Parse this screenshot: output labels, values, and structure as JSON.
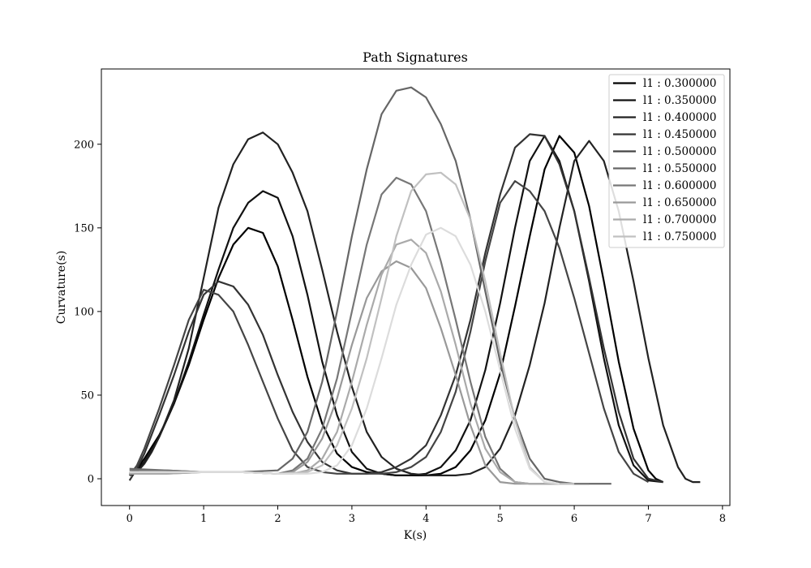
{
  "chart_data": {
    "type": "line",
    "title": "Path Signatures",
    "xlabel": "K(s)",
    "ylabel": "Curvature(s)",
    "xlim": [
      -0.38,
      8.1
    ],
    "ylim": [
      -16,
      245
    ],
    "xticks": [
      0,
      1,
      2,
      3,
      4,
      5,
      6,
      7,
      8
    ],
    "yticks": [
      0,
      50,
      100,
      150,
      200
    ],
    "grid": false,
    "legend_position": "top-right",
    "series": [
      {
        "name": "l1 : 0.300000",
        "color": "#000000",
        "x": [
          0,
          0.1,
          0.2,
          0.3,
          0.4,
          0.5,
          0.6,
          0.8,
          1.0,
          1.2,
          1.4,
          1.6,
          1.8,
          2.0,
          2.2,
          2.4,
          2.6,
          2.8,
          3.0,
          3.2,
          3.4,
          3.6,
          3.8,
          4.0,
          4.2,
          4.4,
          4.6,
          4.8,
          5.0,
          5.2,
          5.4,
          5.6,
          5.8,
          6.0,
          6.2,
          6.4,
          6.6,
          6.8,
          7.0,
          7.1,
          7.2
        ],
        "y": [
          3,
          6,
          12,
          19,
          26,
          35,
          45,
          68,
          95,
          120,
          140,
          150,
          147,
          127,
          95,
          61,
          33,
          15,
          7,
          4,
          3,
          2,
          2,
          2,
          3,
          7,
          17,
          35,
          63,
          103,
          145,
          185,
          205,
          195,
          163,
          118,
          70,
          30,
          5,
          0,
          -2
        ]
      },
      {
        "name": "l1 : 0.350000",
        "color": "#111111",
        "x": [
          0,
          0.1,
          0.2,
          0.3,
          0.4,
          0.6,
          0.8,
          1.0,
          1.2,
          1.4,
          1.6,
          1.8,
          2.0,
          2.2,
          2.4,
          2.6,
          2.8,
          3.0,
          3.2,
          3.4,
          3.6,
          3.8,
          4.0,
          4.2,
          4.4,
          4.6,
          4.8,
          5.0,
          5.2,
          5.4,
          5.6,
          5.8,
          6.0,
          6.2,
          6.4,
          6.6,
          6.8,
          7.0,
          7.2
        ],
        "y": [
          2,
          5,
          10,
          17,
          25,
          45,
          70,
          98,
          125,
          150,
          165,
          172,
          168,
          145,
          110,
          70,
          38,
          16,
          6,
          3,
          2,
          2,
          3,
          7,
          17,
          35,
          65,
          105,
          150,
          190,
          205,
          190,
          160,
          118,
          72,
          32,
          8,
          -1,
          -2
        ]
      },
      {
        "name": "l1 : 0.400000",
        "color": "#222222",
        "x": [
          0,
          0.1,
          0.2,
          0.3,
          0.4,
          0.6,
          0.8,
          1.0,
          1.2,
          1.4,
          1.6,
          1.8,
          2.0,
          2.2,
          2.4,
          2.6,
          2.8,
          3.0,
          3.2,
          3.4,
          3.6,
          3.8,
          4.0,
          4.2,
          4.4,
          4.6,
          4.8,
          5.0,
          5.2,
          5.4,
          5.6,
          5.8,
          6.0,
          6.2,
          6.4,
          6.6,
          6.8,
          7.0,
          7.2,
          7.4,
          7.5,
          7.6,
          7.7
        ],
        "y": [
          2,
          4,
          9,
          16,
          25,
          47,
          78,
          120,
          162,
          188,
          203,
          207,
          200,
          183,
          160,
          125,
          88,
          55,
          28,
          13,
          6,
          3,
          2,
          2,
          2,
          3,
          7,
          18,
          38,
          68,
          105,
          150,
          190,
          202,
          190,
          160,
          118,
          72,
          32,
          7,
          0,
          -2,
          -2
        ]
      },
      {
        "name": "l1 : 0.450000",
        "color": "#333333",
        "x": [
          0,
          0.1,
          0.2,
          0.4,
          0.6,
          0.8,
          1.0,
          1.2,
          1.4,
          1.6,
          1.8,
          2.0,
          2.2,
          2.4,
          2.6,
          2.8,
          3.0,
          3.2,
          3.4,
          3.6,
          3.8,
          4.0,
          4.2,
          4.4,
          4.6,
          4.8,
          5.0,
          5.2,
          5.4,
          5.6,
          5.8,
          6.0,
          6.2,
          6.4,
          6.6,
          6.8,
          7.0,
          7.2
        ],
        "y": [
          -1,
          6,
          15,
          38,
          62,
          88,
          110,
          118,
          115,
          104,
          86,
          62,
          40,
          22,
          10,
          5,
          3,
          3,
          4,
          7,
          12,
          20,
          38,
          62,
          95,
          135,
          170,
          198,
          206,
          205,
          188,
          160,
          120,
          78,
          40,
          12,
          0,
          -2
        ]
      },
      {
        "name": "l1 : 0.500000",
        "color": "#444444",
        "x": [
          0,
          0.1,
          0.2,
          0.4,
          0.6,
          0.8,
          1.0,
          1.2,
          1.4,
          1.6,
          1.8,
          2.0,
          2.2,
          2.4,
          2.6,
          2.8,
          3.0,
          3.2,
          3.4,
          3.6,
          3.8,
          4.0,
          4.2,
          4.4,
          4.6,
          4.8,
          5.0,
          5.2,
          5.4,
          5.6,
          5.8,
          6.0,
          6.2,
          6.4,
          6.6,
          6.8,
          7.0
        ],
        "y": [
          2,
          8,
          18,
          42,
          68,
          95,
          113,
          110,
          100,
          80,
          58,
          36,
          17,
          7,
          4,
          3,
          3,
          3,
          3,
          4,
          7,
          13,
          28,
          52,
          88,
          130,
          165,
          178,
          172,
          160,
          138,
          108,
          75,
          42,
          16,
          3,
          -2
        ]
      },
      {
        "name": "l1 : 0.550000",
        "color": "#666666",
        "x": [
          0,
          0.5,
          1.0,
          1.5,
          2.0,
          2.2,
          2.4,
          2.6,
          2.8,
          3.0,
          3.2,
          3.4,
          3.6,
          3.8,
          4.0,
          4.2,
          4.4,
          4.6,
          4.8,
          5.0,
          5.2,
          5.4,
          5.6,
          5.8,
          6.0,
          6.2,
          6.4,
          6.5
        ],
        "y": [
          6,
          5,
          4,
          4,
          5,
          12,
          28,
          58,
          100,
          145,
          185,
          218,
          232,
          234,
          228,
          212,
          190,
          155,
          112,
          70,
          36,
          12,
          0,
          -2,
          -3,
          -3,
          -3,
          -3
        ]
      },
      {
        "name": "l1 : 0.600000",
        "color": "#777777",
        "x": [
          0,
          0.5,
          1.0,
          1.5,
          2.0,
          2.2,
          2.4,
          2.6,
          2.8,
          3.0,
          3.2,
          3.4,
          3.6,
          3.8,
          4.0,
          4.2,
          4.4,
          4.6,
          4.8,
          5.0,
          5.2,
          5.4,
          5.6,
          5.8,
          6.0,
          6.2
        ],
        "y": [
          5,
          5,
          4,
          4,
          3,
          5,
          12,
          30,
          60,
          100,
          140,
          170,
          180,
          176,
          160,
          130,
          95,
          58,
          25,
          6,
          -2,
          -3,
          -3,
          -3,
          -3,
          -3
        ]
      },
      {
        "name": "l1 : 0.650000",
        "color": "#999999",
        "x": [
          0,
          0.5,
          1.0,
          1.5,
          2.0,
          2.2,
          2.4,
          2.6,
          2.8,
          3.0,
          3.2,
          3.4,
          3.6,
          3.8,
          4.0,
          4.2,
          4.4,
          4.6,
          4.8,
          5.0,
          5.2,
          5.4,
          5.6,
          5.8
        ],
        "y": [
          3,
          3,
          4,
          4,
          3,
          4,
          10,
          24,
          48,
          80,
          108,
          124,
          130,
          126,
          114,
          90,
          62,
          32,
          8,
          -2,
          -3,
          -3,
          -3,
          -3
        ]
      },
      {
        "name": "l1 : 0.700000",
        "color": "#aaaaaa",
        "x": [
          0,
          0.5,
          1.0,
          1.5,
          2.0,
          2.2,
          2.4,
          2.6,
          2.8,
          3.0,
          3.2,
          3.4,
          3.6,
          3.8,
          4.0,
          4.2,
          4.4,
          4.6,
          4.8,
          5.0,
          5.2,
          5.4,
          5.6,
          5.8
        ],
        "y": [
          3,
          3,
          4,
          4,
          3,
          3,
          5,
          12,
          28,
          58,
          92,
          122,
          140,
          143,
          135,
          112,
          80,
          45,
          18,
          4,
          -2,
          -3,
          -3,
          -3
        ]
      },
      {
        "name": "l1 : 0.750000",
        "color": "#c0c0c0",
        "x": [
          0,
          0.5,
          1.0,
          1.5,
          2.0,
          2.4,
          2.6,
          2.8,
          3.0,
          3.2,
          3.4,
          3.6,
          3.8,
          4.0,
          4.2,
          4.4,
          4.6,
          4.8,
          5.0,
          5.2,
          5.4,
          5.6,
          5.8,
          6.0
        ],
        "y": [
          4,
          4,
          4,
          4,
          3,
          4,
          8,
          20,
          42,
          72,
          108,
          145,
          172,
          182,
          183,
          176,
          155,
          118,
          75,
          35,
          7,
          -2,
          -3,
          -3
        ]
      },
      {
        "name": "l1 : 0.750000",
        "color": "#dcdcdc",
        "x": [
          0,
          0.5,
          1.0,
          1.5,
          2.0,
          2.4,
          2.6,
          2.8,
          3.0,
          3.2,
          3.4,
          3.6,
          3.8,
          4.0,
          4.2,
          4.4,
          4.6,
          4.8,
          5.0,
          5.2,
          5.4,
          5.6,
          5.8
        ],
        "y": [
          4,
          4,
          4,
          4,
          3,
          3,
          4,
          8,
          20,
          42,
          72,
          104,
          128,
          146,
          150,
          145,
          128,
          100,
          65,
          30,
          6,
          -2,
          -3
        ]
      }
    ]
  }
}
